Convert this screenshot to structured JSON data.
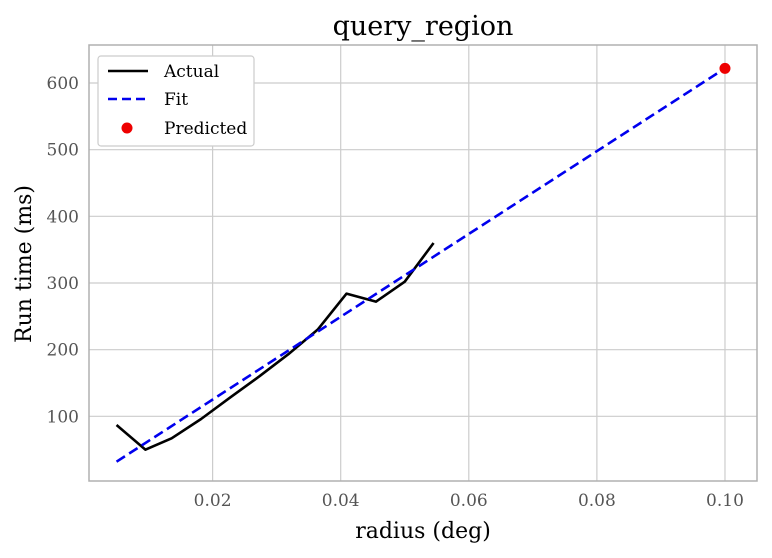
{
  "chart_data": {
    "type": "line",
    "title": "query_region",
    "xlabel": "radius (deg)",
    "ylabel": "Run time (ms)",
    "xlim": [
      0.0007,
      0.105
    ],
    "ylim": [
      3,
      657
    ],
    "xticks": [
      0.02,
      0.04,
      0.06,
      0.08,
      0.1
    ],
    "xtick_labels": [
      "0.02",
      "0.04",
      "0.06",
      "0.08",
      "0.10"
    ],
    "yticks": [
      100,
      200,
      300,
      400,
      500,
      600
    ],
    "ytick_labels": [
      "100",
      "200",
      "300",
      "400",
      "500",
      "600"
    ],
    "grid": true,
    "legend_position": "top-left",
    "series": [
      {
        "name": "Actual",
        "style": "solid",
        "color": "#000000",
        "x": [
          0.005,
          0.0095,
          0.0136,
          0.0182,
          0.0227,
          0.0273,
          0.0318,
          0.0364,
          0.0409,
          0.0455,
          0.05,
          0.0545
        ],
        "y": [
          87,
          50,
          67,
          96,
          128,
          160,
          193,
          230,
          284,
          272,
          302,
          360
        ]
      },
      {
        "name": "Fit",
        "style": "dashed",
        "color": "#0000ee",
        "x": [
          0.005,
          0.1
        ],
        "y": [
          32,
          622
        ]
      },
      {
        "name": "Predicted",
        "style": "marker",
        "color": "#ee0000",
        "x": [
          0.1
        ],
        "y": [
          622
        ]
      }
    ]
  }
}
